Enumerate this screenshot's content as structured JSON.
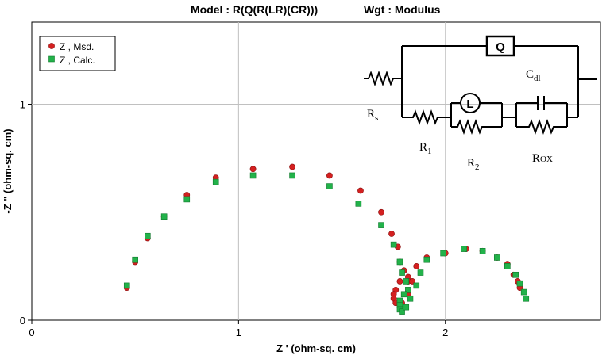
{
  "chart_data": {
    "type": "scatter",
    "title_model": "Model : R(Q(R(LR)(CR)))",
    "title_wgt": "Wgt : Modulus",
    "xlabel": "Z ' (ohm-sq. cm)",
    "ylabel": "-Z \" (ohm-sq. cm)",
    "xlim": [
      0,
      2.75
    ],
    "ylim": [
      0,
      1.38
    ],
    "x_ticks": [
      0,
      1,
      2
    ],
    "y_ticks": [
      0,
      1
    ],
    "grid": true,
    "legend_position": "top-left",
    "colors": {
      "measured": "#d42020",
      "calculated": "#22b24a",
      "grid": "#c0c0c0"
    },
    "series": [
      {
        "name": "Z , Msd.",
        "marker": "circle",
        "points": [
          [
            0.46,
            0.15
          ],
          [
            0.5,
            0.27
          ],
          [
            0.56,
            0.38
          ],
          [
            0.64,
            0.48
          ],
          [
            0.75,
            0.58
          ],
          [
            0.89,
            0.66
          ],
          [
            1.07,
            0.7
          ],
          [
            1.26,
            0.71
          ],
          [
            1.44,
            0.67
          ],
          [
            1.59,
            0.6
          ],
          [
            1.69,
            0.5
          ],
          [
            1.74,
            0.4
          ],
          [
            1.77,
            0.34
          ],
          [
            1.78,
            0.27
          ],
          [
            1.8,
            0.23
          ],
          [
            1.82,
            0.2
          ],
          [
            1.82,
            0.18
          ],
          [
            1.78,
            0.18
          ],
          [
            1.76,
            0.14
          ],
          [
            1.75,
            0.12
          ],
          [
            1.75,
            0.1
          ],
          [
            1.76,
            0.08
          ],
          [
            1.78,
            0.07
          ],
          [
            1.79,
            0.08
          ],
          [
            1.82,
            0.12
          ],
          [
            1.84,
            0.18
          ],
          [
            1.86,
            0.25
          ],
          [
            1.91,
            0.29
          ],
          [
            2.0,
            0.31
          ],
          [
            2.1,
            0.33
          ],
          [
            2.18,
            0.32
          ],
          [
            2.25,
            0.29
          ],
          [
            2.3,
            0.26
          ],
          [
            2.33,
            0.21
          ],
          [
            2.35,
            0.18
          ],
          [
            2.36,
            0.15
          ]
        ]
      },
      {
        "name": "Z , Calc.",
        "marker": "square",
        "points": [
          [
            0.46,
            0.16
          ],
          [
            0.5,
            0.28
          ],
          [
            0.56,
            0.39
          ],
          [
            0.64,
            0.48
          ],
          [
            0.75,
            0.56
          ],
          [
            0.89,
            0.64
          ],
          [
            1.07,
            0.67
          ],
          [
            1.26,
            0.67
          ],
          [
            1.44,
            0.62
          ],
          [
            1.58,
            0.54
          ],
          [
            1.69,
            0.44
          ],
          [
            1.75,
            0.35
          ],
          [
            1.78,
            0.27
          ],
          [
            1.79,
            0.22
          ],
          [
            1.81,
            0.18
          ],
          [
            1.82,
            0.14
          ],
          [
            1.8,
            0.12
          ],
          [
            1.78,
            0.09
          ],
          [
            1.78,
            0.07
          ],
          [
            1.78,
            0.05
          ],
          [
            1.79,
            0.04
          ],
          [
            1.81,
            0.06
          ],
          [
            1.83,
            0.1
          ],
          [
            1.86,
            0.16
          ],
          [
            1.88,
            0.22
          ],
          [
            1.91,
            0.28
          ],
          [
            1.99,
            0.31
          ],
          [
            2.09,
            0.33
          ],
          [
            2.18,
            0.32
          ],
          [
            2.25,
            0.29
          ],
          [
            2.3,
            0.25
          ],
          [
            2.34,
            0.21
          ],
          [
            2.36,
            0.17
          ],
          [
            2.38,
            0.13
          ],
          [
            2.39,
            0.1
          ]
        ]
      }
    ]
  },
  "circuit": {
    "q_label": "Q",
    "l_label": "L",
    "cdl_label": "C",
    "cdl_sub": "dl",
    "rs_label": "R",
    "rs_sub": "s",
    "r1_label": "R",
    "r1_sub": "1",
    "r2_label": "R",
    "r2_sub": "2",
    "rox_label": "R",
    "rox_sub": "OX"
  }
}
